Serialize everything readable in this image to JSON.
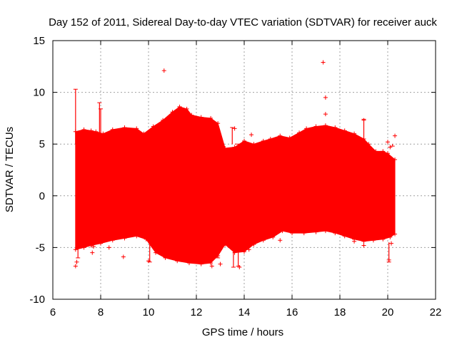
{
  "chart_data": {
    "type": "scatter",
    "title": "Day 152 of 2011, Sidereal Day-to-day VTEC variation (SDTVAR) for receiver auck",
    "xlabel": "GPS time / hours",
    "ylabel": "SDTVAR / TECUs",
    "xlim": [
      6,
      22
    ],
    "ylim": [
      -10,
      15
    ],
    "x_ticks": [
      "6",
      "8",
      "10",
      "12",
      "14",
      "16",
      "18",
      "20",
      "22"
    ],
    "y_ticks": [
      "-10",
      "-5",
      "0",
      "5",
      "10",
      "15"
    ],
    "grid": true,
    "marker": "plus",
    "color": "#ff0000",
    "series": [
      {
        "name": "auck",
        "envelope_upper": [
          [
            6.95,
            6.2
          ],
          [
            7.3,
            6.4
          ],
          [
            7.6,
            6.3
          ],
          [
            7.8,
            6.2
          ],
          [
            8.1,
            6.0
          ],
          [
            8.5,
            6.4
          ],
          [
            9.0,
            6.6
          ],
          [
            9.5,
            6.5
          ],
          [
            9.8,
            6.0
          ],
          [
            10.2,
            6.7
          ],
          [
            10.6,
            7.3
          ],
          [
            11.0,
            8.1
          ],
          [
            11.3,
            8.6
          ],
          [
            11.6,
            8.4
          ],
          [
            11.8,
            7.8
          ],
          [
            12.2,
            7.6
          ],
          [
            12.6,
            7.5
          ],
          [
            12.9,
            7.0
          ],
          [
            13.2,
            4.6
          ],
          [
            13.6,
            4.7
          ],
          [
            14.0,
            5.3
          ],
          [
            14.4,
            5.0
          ],
          [
            14.8,
            5.3
          ],
          [
            15.1,
            5.5
          ],
          [
            15.5,
            5.8
          ],
          [
            15.9,
            5.6
          ],
          [
            16.3,
            6.1
          ],
          [
            16.6,
            6.5
          ],
          [
            17.0,
            6.7
          ],
          [
            17.4,
            6.8
          ],
          [
            17.8,
            6.6
          ],
          [
            18.2,
            6.3
          ],
          [
            18.6,
            6.0
          ],
          [
            19.0,
            5.5
          ],
          [
            19.2,
            5.0
          ],
          [
            19.5,
            4.3
          ],
          [
            19.8,
            4.3
          ],
          [
            20.0,
            4.1
          ],
          [
            20.3,
            3.5
          ]
        ],
        "envelope_lower": [
          [
            6.95,
            -5.2
          ],
          [
            7.3,
            -5.0
          ],
          [
            7.6,
            -4.8
          ],
          [
            8.0,
            -4.6
          ],
          [
            8.5,
            -4.3
          ],
          [
            9.0,
            -4.1
          ],
          [
            9.5,
            -3.9
          ],
          [
            9.9,
            -4.2
          ],
          [
            10.3,
            -5.5
          ],
          [
            10.7,
            -6.0
          ],
          [
            11.2,
            -6.3
          ],
          [
            11.7,
            -6.5
          ],
          [
            12.2,
            -6.6
          ],
          [
            12.6,
            -6.5
          ],
          [
            12.9,
            -5.8
          ],
          [
            13.2,
            -4.7
          ],
          [
            13.6,
            -5.5
          ],
          [
            14.0,
            -5.4
          ],
          [
            14.4,
            -4.7
          ],
          [
            14.8,
            -4.3
          ],
          [
            15.2,
            -4.0
          ],
          [
            15.6,
            -3.4
          ],
          [
            16.0,
            -3.6
          ],
          [
            16.5,
            -3.6
          ],
          [
            17.0,
            -3.5
          ],
          [
            17.4,
            -3.4
          ],
          [
            17.8,
            -3.6
          ],
          [
            18.2,
            -3.9
          ],
          [
            18.6,
            -4.2
          ],
          [
            19.0,
            -4.4
          ],
          [
            19.4,
            -4.3
          ],
          [
            19.8,
            -4.2
          ],
          [
            20.1,
            -4.0
          ],
          [
            20.3,
            -3.7
          ]
        ],
        "outliers": [
          [
            10.65,
            12.1
          ],
          [
            17.3,
            12.9
          ],
          [
            17.4,
            9.5
          ],
          [
            17.4,
            7.9
          ],
          [
            13.6,
            6.5
          ],
          [
            14.3,
            5.9
          ],
          [
            19.0,
            7.3
          ],
          [
            20.3,
            5.8
          ],
          [
            20.0,
            5.2
          ],
          [
            20.1,
            4.7
          ],
          [
            8.95,
            -5.9
          ],
          [
            8.35,
            -5.0
          ],
          [
            7.65,
            -5.5
          ],
          [
            7.7,
            -4.9
          ],
          [
            10.0,
            -6.3
          ],
          [
            12.65,
            -6.8
          ],
          [
            13.0,
            -6.6
          ],
          [
            13.8,
            -6.9
          ],
          [
            14.2,
            -5.2
          ],
          [
            15.5,
            -4.3
          ],
          [
            18.6,
            -4.4
          ],
          [
            19.0,
            -4.8
          ],
          [
            20.05,
            -6.2
          ],
          [
            20.15,
            -4.6
          ],
          [
            6.95,
            -6.8
          ],
          [
            7.0,
            -6.4
          ]
        ],
        "spikes": [
          [
            6.95,
            10.3
          ],
          [
            7.95,
            9.0
          ],
          [
            8.0,
            8.4
          ],
          [
            11.3,
            8.6
          ],
          [
            13.5,
            6.6
          ],
          [
            13.7,
            5.0
          ],
          [
            19.0,
            7.4
          ],
          [
            20.2,
            4.8
          ],
          [
            7.05,
            -6.0
          ],
          [
            7.98,
            -4.6
          ],
          [
            10.05,
            -6.4
          ],
          [
            12.9,
            -6.0
          ],
          [
            13.55,
            -6.9
          ],
          [
            13.75,
            -6.8
          ],
          [
            20.05,
            -6.4
          ]
        ]
      }
    ]
  }
}
